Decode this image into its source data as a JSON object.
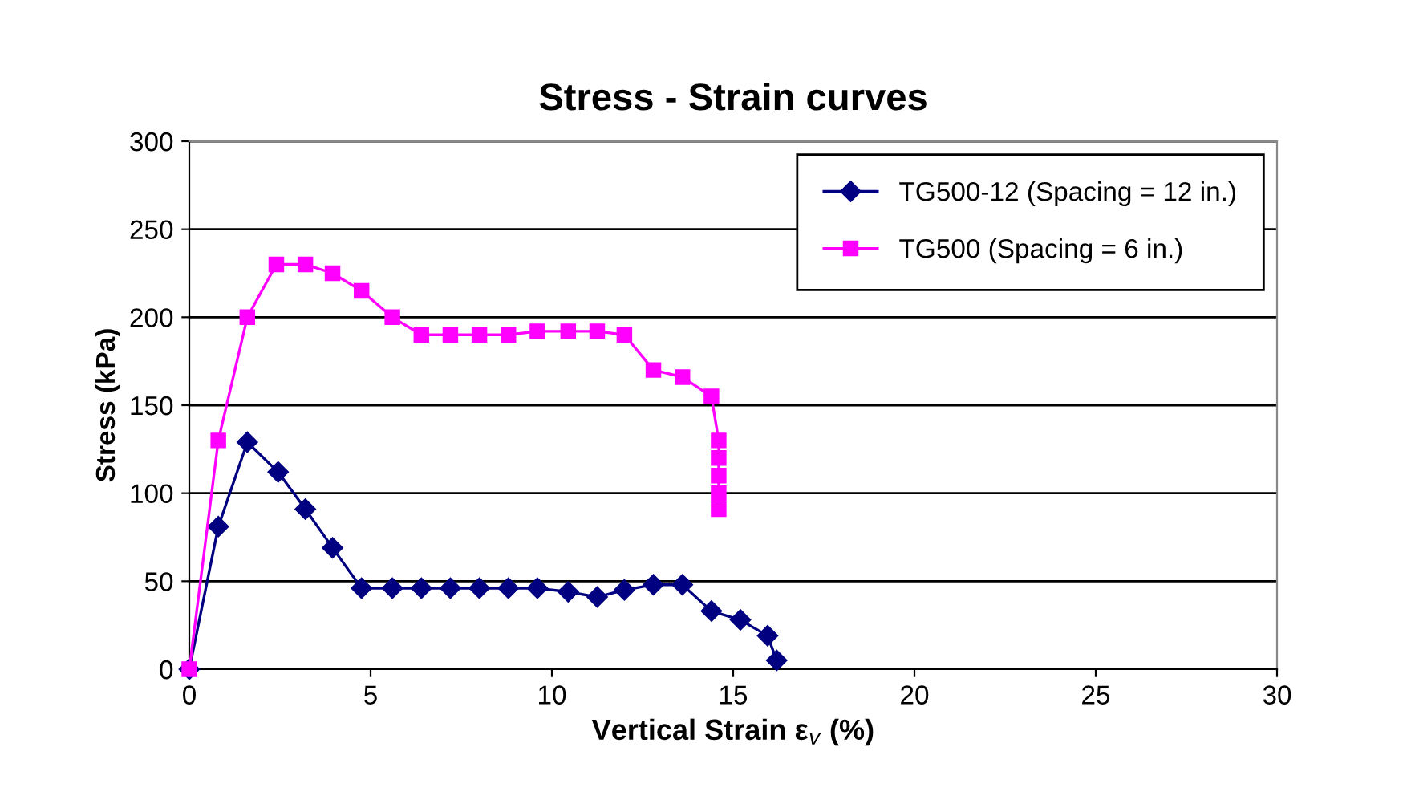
{
  "chart_data": {
    "type": "line",
    "title": "Stress - Strain curves",
    "xlabel": "Vertical Strain ε$_{v}$ (%)",
    "ylabel": "Stress (kPa)",
    "xlim": [
      0,
      30
    ],
    "xticks": [
      0,
      5,
      10,
      15,
      20,
      25,
      30
    ],
    "ylim": [
      0,
      300
    ],
    "yticks": [
      0,
      50,
      100,
      150,
      200,
      250,
      300
    ],
    "grid": "y",
    "legend": "top right",
    "series": [
      {
        "name": "TG500-12 (Spacing = 12 in.)",
        "color": "#000080",
        "marker": "diamond",
        "x": [
          0,
          0.8,
          1.6,
          2.45,
          3.2,
          3.95,
          4.75,
          5.6,
          6.4,
          7.2,
          8.0,
          8.8,
          9.6,
          10.45,
          11.25,
          12.0,
          12.8,
          13.6,
          14.4,
          15.2,
          15.95,
          16.2
        ],
        "values": [
          0,
          81,
          129,
          112,
          91,
          69,
          46,
          46,
          46,
          46,
          46,
          46,
          46,
          44,
          41,
          45,
          48,
          48,
          33,
          28,
          19,
          5
        ]
      },
      {
        "name": "TG500 (Spacing = 6 in.)",
        "color": "#ff00ff",
        "marker": "square",
        "x": [
          0,
          0.8,
          1.6,
          2.4,
          3.2,
          3.95,
          4.75,
          5.6,
          6.4,
          7.2,
          8.0,
          8.8,
          9.6,
          10.45,
          11.25,
          12.0,
          12.8,
          13.6,
          14.4,
          14.6,
          14.6,
          14.6,
          14.6,
          14.6
        ],
        "values": [
          0,
          130,
          200,
          230,
          230,
          225,
          215,
          200,
          190,
          190,
          190,
          190,
          192,
          192,
          192,
          190,
          170,
          166,
          155,
          130,
          120,
          110,
          100,
          91
        ]
      }
    ]
  }
}
